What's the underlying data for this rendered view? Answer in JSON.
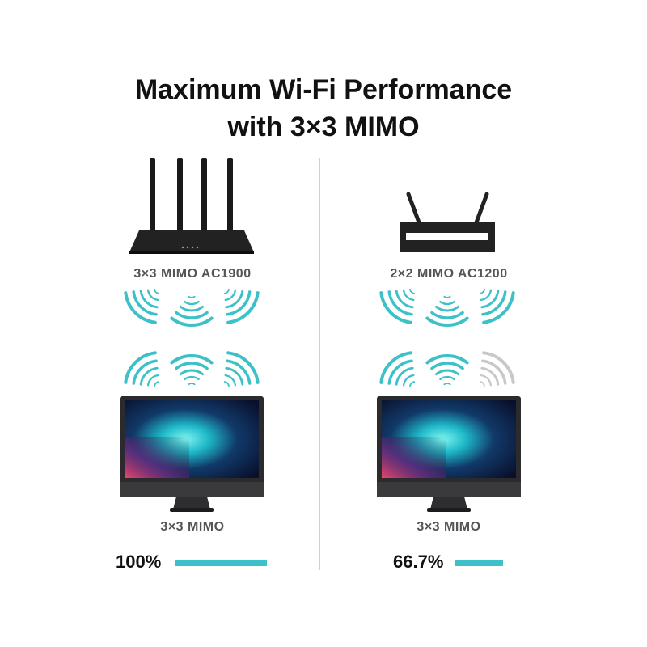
{
  "title": {
    "line1": "Maximum Wi-Fi Performance",
    "line2": "with 3×3 MIMO"
  },
  "colors": {
    "accent": "#3dc1c8",
    "inactive": "#c8c8c8"
  },
  "left": {
    "router_label": "3×3 MIMO AC1900",
    "device_label": "3×3 MIMO",
    "performance_label": "100%",
    "performance": 100,
    "active_streams": 3,
    "total_streams": 3
  },
  "right": {
    "router_label": "2×2 MIMO AC1200",
    "device_label": "3×3 MIMO",
    "performance_label": "66.7%",
    "performance": 66.7,
    "active_streams": 2,
    "total_streams": 3
  }
}
